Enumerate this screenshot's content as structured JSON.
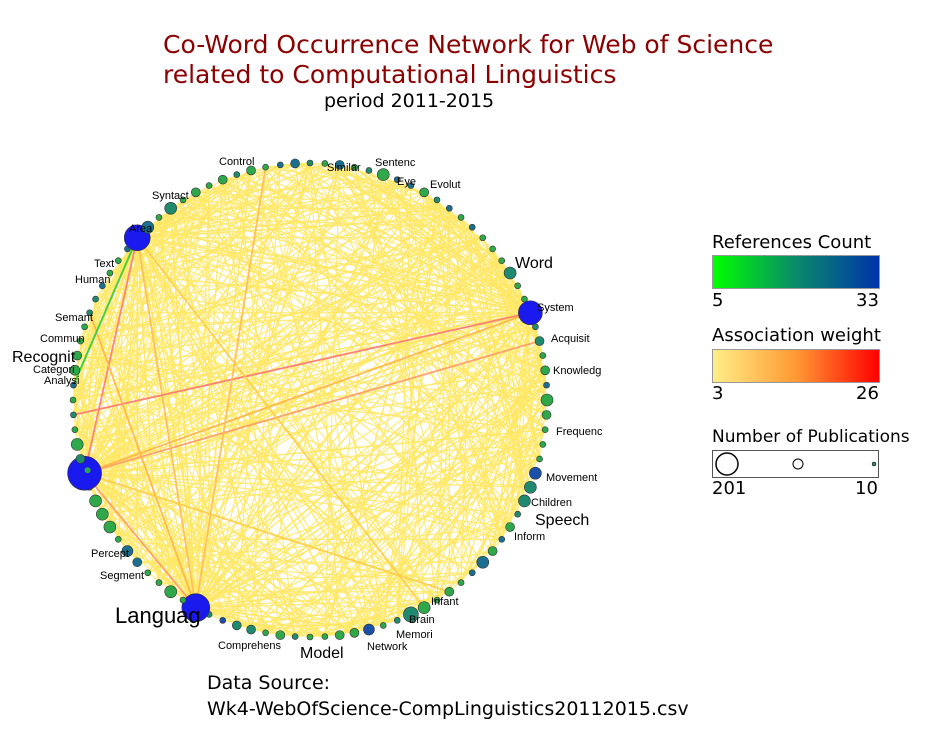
{
  "title_line1": "Co-Word Occurrence Network for Web of Science",
  "title_line2": "related to Computational Linguistics",
  "subtitle": "period 2011-2015",
  "source_label": "Data Source:",
  "source_file": "Wk4-WebOfScience-CompLinguistics20112015.csv",
  "legend": {
    "refs_title": "References Count",
    "refs_min": "5",
    "refs_max": "33",
    "refs_colors": [
      "#00ff00",
      "#0a8a6a",
      "#0033aa"
    ],
    "assoc_title": "Association weight",
    "assoc_min": "3",
    "assoc_max": "26",
    "assoc_colors": [
      "#ffee88",
      "#ff9933",
      "#ff0000"
    ],
    "pubs_title": "Number of Publications",
    "pubs_max": "201",
    "pubs_min": "10"
  },
  "labels": [
    {
      "text": "Word",
      "size": "large"
    },
    {
      "text": "System",
      "size": "small"
    },
    {
      "text": "Acquisit",
      "size": "small"
    },
    {
      "text": "Knowledg",
      "size": "small"
    },
    {
      "text": "Frequenc",
      "size": "small"
    },
    {
      "text": "Movement",
      "size": "small"
    },
    {
      "text": "Children",
      "size": "small"
    },
    {
      "text": "Speech",
      "size": "large"
    },
    {
      "text": "Inform",
      "size": "small"
    },
    {
      "text": "Infant",
      "size": "small"
    },
    {
      "text": "Brain",
      "size": "small"
    },
    {
      "text": "Memori",
      "size": "small"
    },
    {
      "text": "Network",
      "size": "small"
    },
    {
      "text": "Model",
      "size": "large"
    },
    {
      "text": "Comprehens",
      "size": "small"
    },
    {
      "text": "Languag",
      "size": "xlarge"
    },
    {
      "text": "Segment",
      "size": "small"
    },
    {
      "text": "Percept",
      "size": "small"
    },
    {
      "text": "Recognit",
      "size": "large"
    },
    {
      "text": "Commun",
      "size": "small"
    },
    {
      "text": "Categori",
      "size": "small"
    },
    {
      "text": "Analysi",
      "size": "small"
    },
    {
      "text": "Semant",
      "size": "small"
    },
    {
      "text": "Human",
      "size": "small"
    },
    {
      "text": "Text",
      "size": "small"
    },
    {
      "text": "Area",
      "size": "small"
    },
    {
      "text": "Syntact",
      "size": "small"
    },
    {
      "text": "Control",
      "size": "small"
    },
    {
      "text": "Similar",
      "size": "small"
    },
    {
      "text": "Sentenc",
      "size": "small"
    },
    {
      "text": "Eye",
      "size": "small"
    },
    {
      "text": "Evolut",
      "size": "small"
    }
  ]
}
